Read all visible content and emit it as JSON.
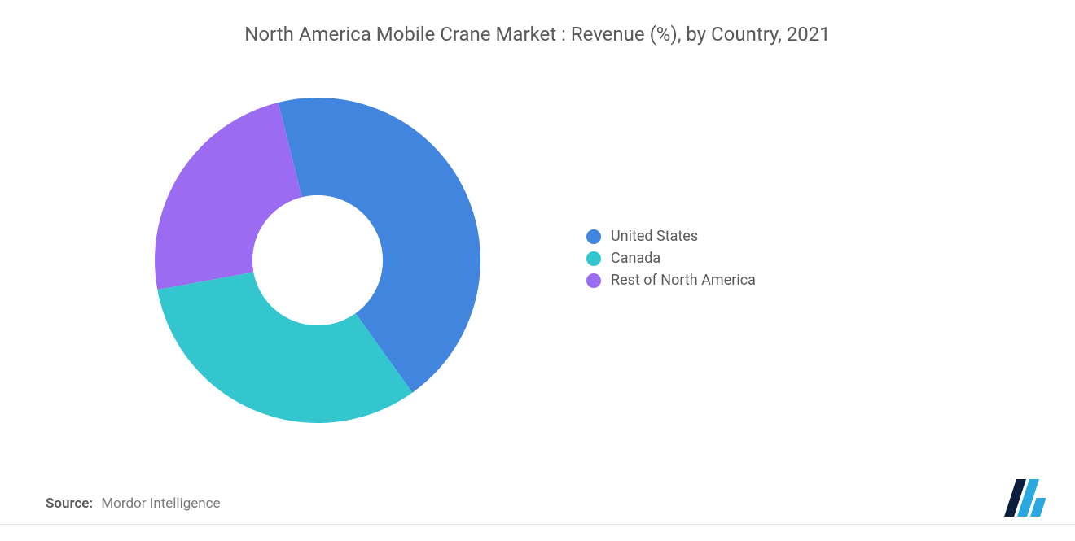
{
  "chart": {
    "type": "donut",
    "title": "North America Mobile Crane Market : Revenue (%), by Country, 2021",
    "title_fontsize": 24,
    "title_color": "#5a5a5a",
    "background_color": "#ffffff",
    "donut": {
      "outer_radius": 200,
      "inner_radius": 80,
      "start_angle_deg": -104,
      "slices": [
        {
          "label": "United States",
          "value": 44,
          "color": "#4285de"
        },
        {
          "label": "Canada",
          "value": 32,
          "color": "#33c6cf"
        },
        {
          "label": "Rest of North America",
          "value": 24,
          "color": "#9b6cf2"
        }
      ]
    },
    "legend": {
      "fontsize": 18,
      "text_color": "#5a5a5a",
      "items": [
        {
          "label": "United States",
          "color": "#4285de"
        },
        {
          "label": "Canada",
          "color": "#33c6cf"
        },
        {
          "label": "Rest of North America",
          "color": "#9b6cf2"
        }
      ]
    },
    "source": {
      "label": "Source:",
      "text": "Mordor Intelligence",
      "fontsize": 17,
      "color": "#7a7a7a"
    },
    "logo": {
      "bar1_color": "#0b1e3d",
      "bar2_color": "#2aa8e0",
      "bar3_color": "#2aa8e0"
    }
  }
}
